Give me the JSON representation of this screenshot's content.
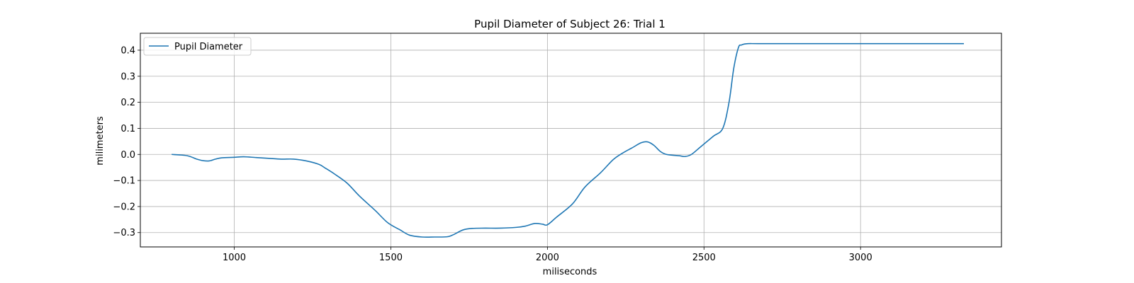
{
  "chart_data": {
    "type": "line",
    "title": "Pupil Diameter of Subject 26: Trial 1",
    "xlabel": "miliseconds",
    "ylabel": "milimeters",
    "xlim": [
      700,
      3450
    ],
    "ylim": [
      -0.355,
      0.465
    ],
    "xticks": [
      1000,
      1500,
      2000,
      2500,
      3000
    ],
    "yticks": [
      -0.3,
      -0.2,
      -0.1,
      0.0,
      0.1,
      0.2,
      0.3,
      0.4
    ],
    "grid": true,
    "legend_position": "upper-left",
    "series": [
      {
        "name": "Pupil Diameter",
        "color": "#1f77b4",
        "x": [
          800,
          850,
          880,
          900,
          920,
          940,
          960,
          1000,
          1030,
          1070,
          1110,
          1150,
          1190,
          1230,
          1270,
          1290,
          1320,
          1360,
          1400,
          1450,
          1490,
          1530,
          1560,
          1600,
          1640,
          1680,
          1700,
          1730,
          1760,
          1800,
          1850,
          1900,
          1930,
          1960,
          1985,
          2000,
          2030,
          2080,
          2120,
          2170,
          2210,
          2240,
          2270,
          2300,
          2320,
          2340,
          2360,
          2380,
          2420,
          2440,
          2460,
          2490,
          2530,
          2560,
          2580,
          2595,
          2610,
          2620,
          2640,
          2700,
          3000,
          3330
        ],
        "y": [
          0.0,
          -0.005,
          -0.018,
          -0.024,
          -0.025,
          -0.018,
          -0.013,
          -0.011,
          -0.009,
          -0.012,
          -0.015,
          -0.018,
          -0.018,
          -0.025,
          -0.038,
          -0.052,
          -0.075,
          -0.11,
          -0.16,
          -0.215,
          -0.262,
          -0.29,
          -0.31,
          -0.317,
          -0.317,
          -0.316,
          -0.308,
          -0.29,
          -0.284,
          -0.283,
          -0.283,
          -0.28,
          -0.275,
          -0.265,
          -0.268,
          -0.27,
          -0.24,
          -0.19,
          -0.125,
          -0.07,
          -0.02,
          0.005,
          0.025,
          0.045,
          0.048,
          0.035,
          0.012,
          0.0,
          -0.005,
          -0.008,
          0.0,
          0.03,
          0.07,
          0.1,
          0.2,
          0.33,
          0.41,
          0.42,
          0.425,
          0.425,
          0.425,
          0.425
        ]
      }
    ]
  }
}
